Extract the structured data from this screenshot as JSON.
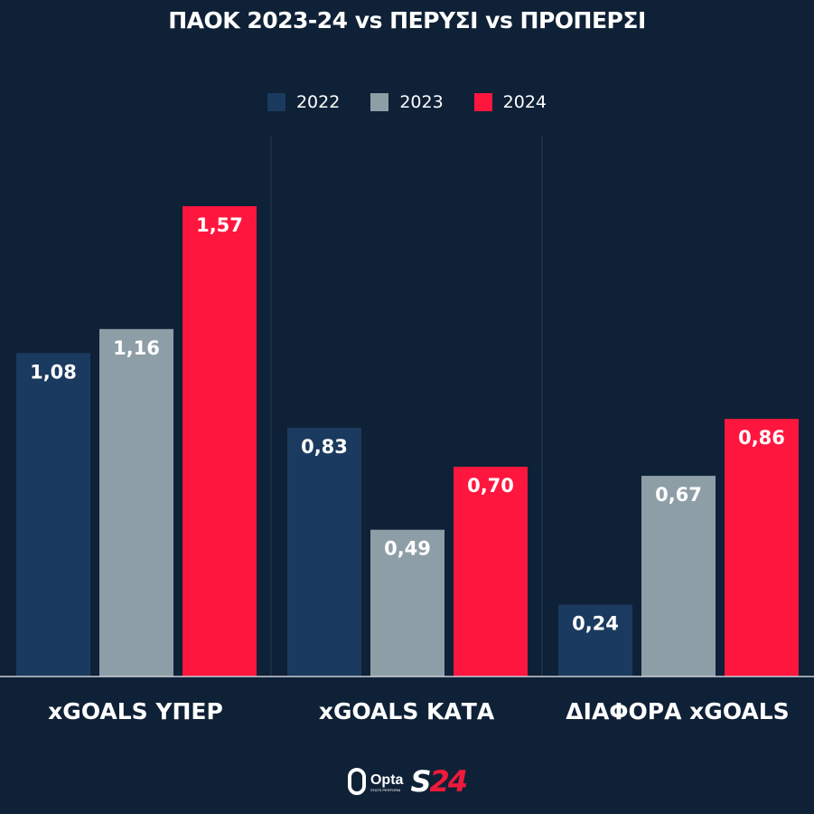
{
  "title": "ΠΑΟΚ 2023-24 vs ΠΕΡΥΣΙ vs ΠΡΟΠΕΡΣΙ",
  "legend": [
    {
      "label": "2022",
      "color": "#1b3a5f"
    },
    {
      "label": "2023",
      "color": "#8e9ea7"
    },
    {
      "label": "2024",
      "color": "#ff163e"
    }
  ],
  "chart_data": {
    "type": "bar",
    "title": "ΠΑΟΚ 2023-24 vs ΠΕΡΥΣΙ vs ΠΡΟΠΕΡΣΙ",
    "categories": [
      "xGOALS ΥΠΕΡ",
      "xGOALS ΚΑΤΑ",
      "ΔΙΑΦΟΡΑ xGOALS"
    ],
    "series": [
      {
        "name": "2022",
        "values": [
          1.08,
          0.83,
          0.24
        ],
        "labels": [
          "1,08",
          "0,83",
          "0,24"
        ],
        "color": "#1b3a5f"
      },
      {
        "name": "2023",
        "values": [
          1.16,
          0.49,
          0.67
        ],
        "labels": [
          "1,16",
          "0,49",
          "0,67"
        ],
        "color": "#8e9ea7"
      },
      {
        "name": "2024",
        "values": [
          1.57,
          0.7,
          0.86
        ],
        "labels": [
          "1,57",
          "0,70",
          "0,86"
        ],
        "color": "#ff163e"
      }
    ],
    "ylim": [
      0,
      1.57
    ],
    "grid": false,
    "legend_position": "top"
  },
  "logos": {
    "opta_word": "Opta",
    "opta_sub": "STATS PERFORM",
    "s24_s": "S",
    "s24_num": "24"
  }
}
